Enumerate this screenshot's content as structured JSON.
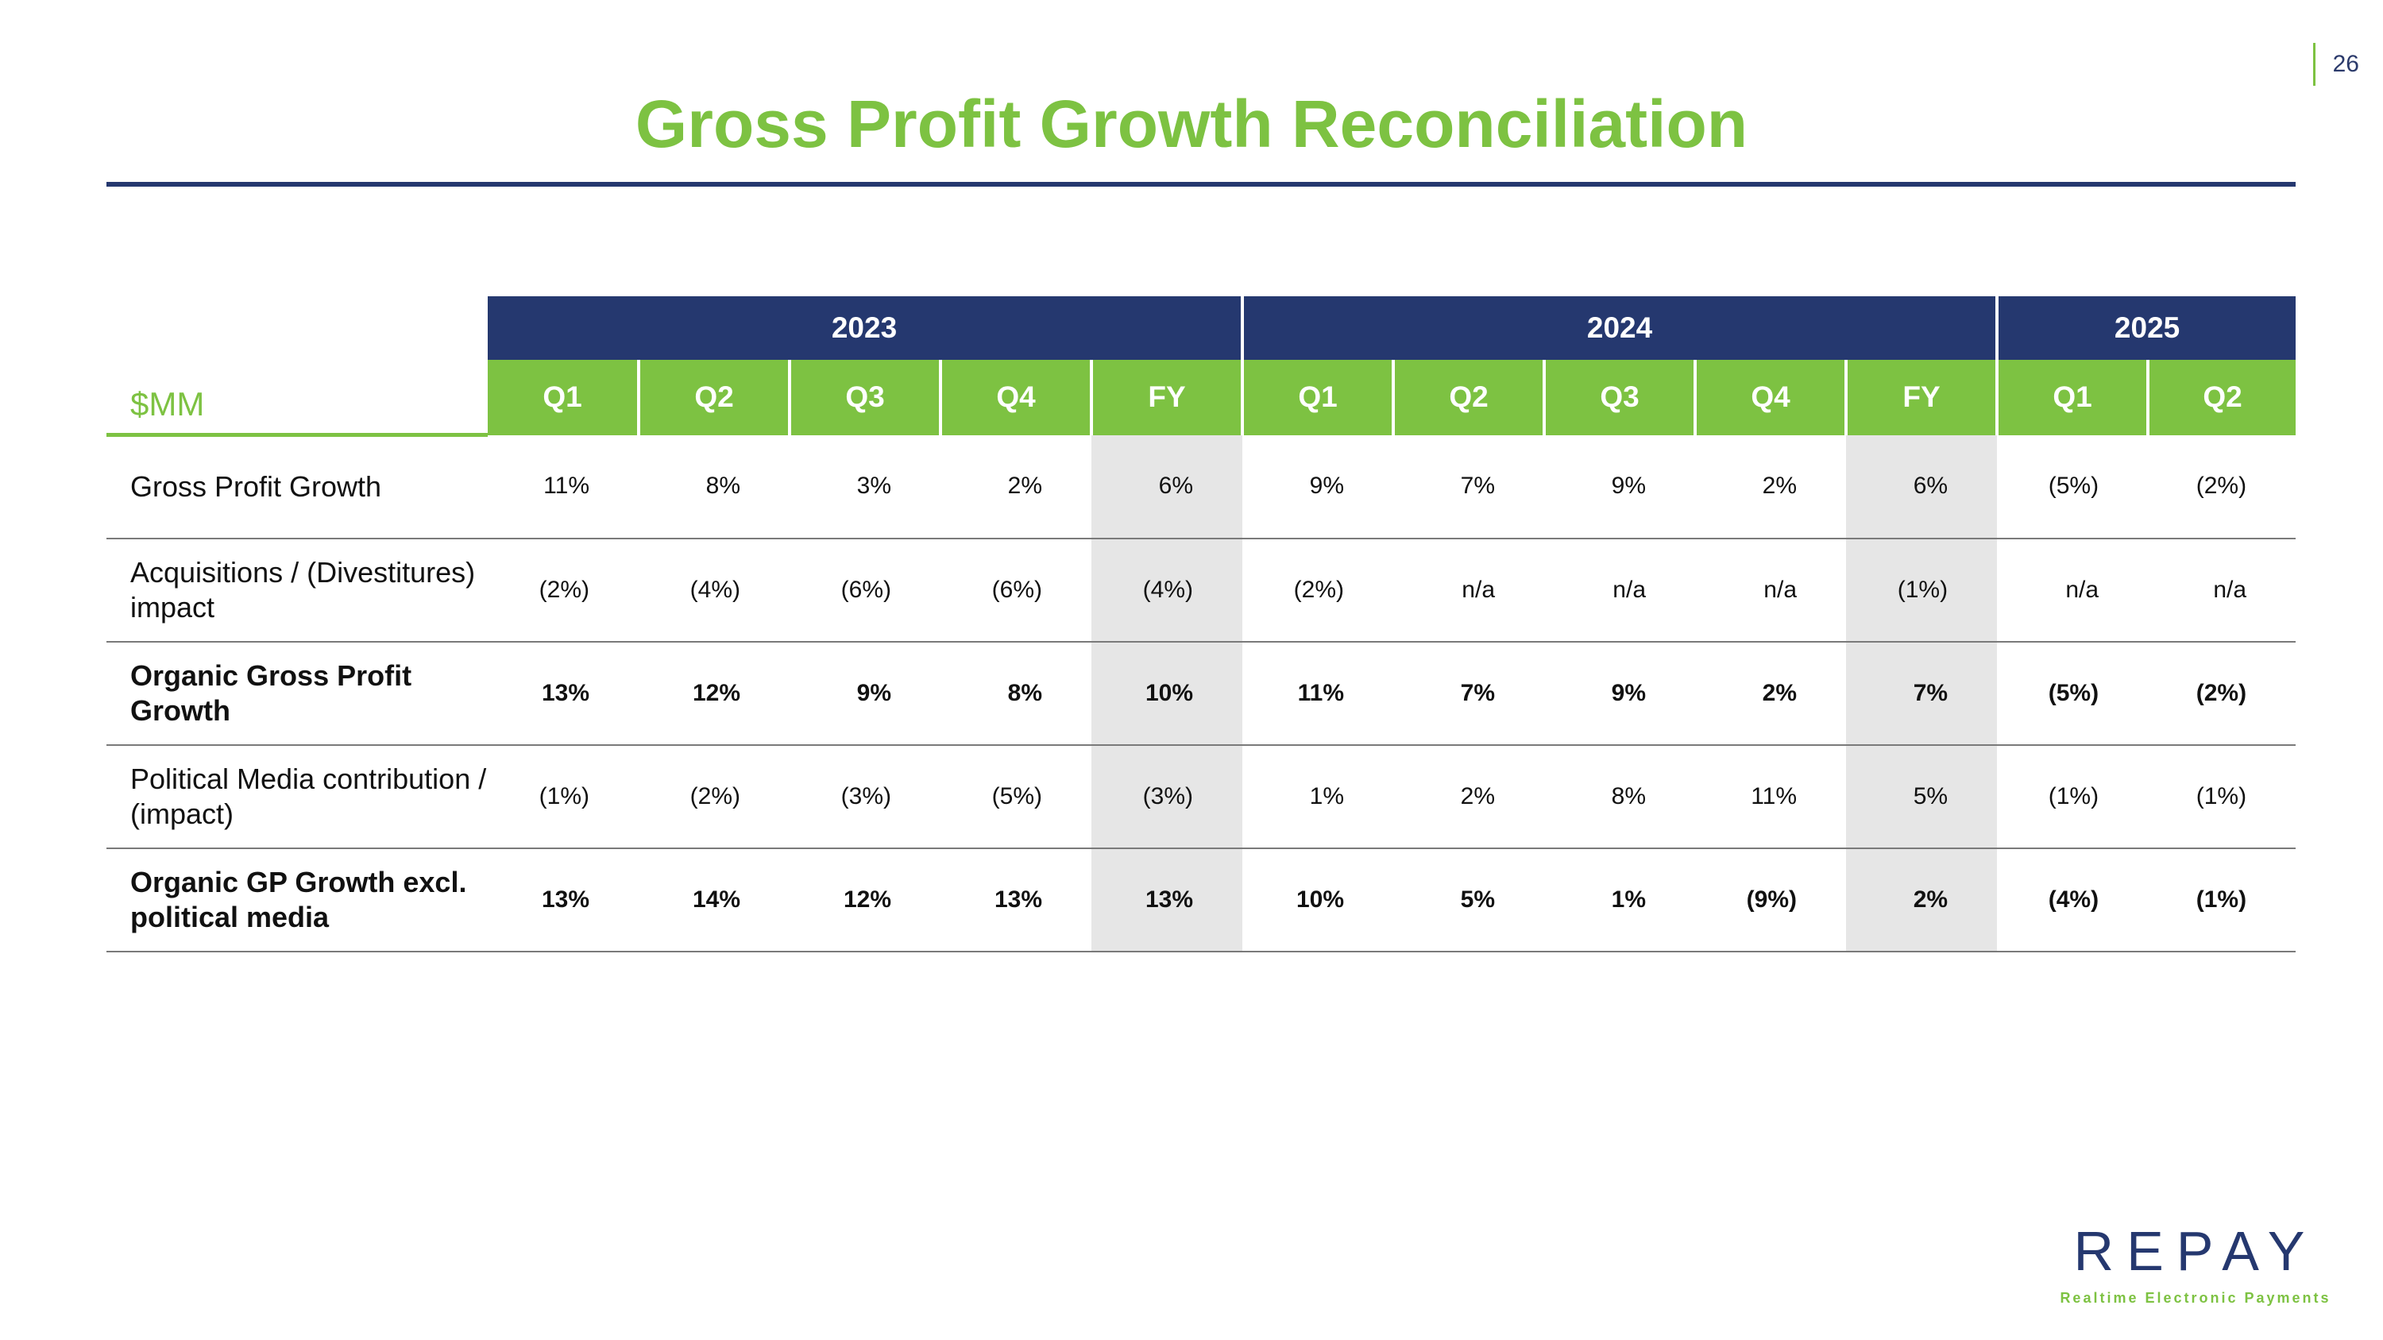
{
  "page_number": "26",
  "title": "Gross Profit Growth Reconciliation",
  "table": {
    "unit_label": "$MM",
    "years": [
      {
        "label": "2023",
        "span": 5
      },
      {
        "label": "2024",
        "span": 5
      },
      {
        "label": "2025",
        "span": 2
      }
    ],
    "periods": [
      "Q1",
      "Q2",
      "Q3",
      "Q4",
      "FY",
      "Q1",
      "Q2",
      "Q3",
      "Q4",
      "FY",
      "Q1",
      "Q2"
    ],
    "rows": [
      {
        "label": "Gross Profit Growth",
        "bold": false,
        "values": [
          "11%",
          "8%",
          "3%",
          "2%",
          "6%",
          "9%",
          "7%",
          "9%",
          "2%",
          "6%",
          "(5%)",
          "(2%)"
        ]
      },
      {
        "label": "Acquisitions / (Divestitures) impact",
        "bold": false,
        "values": [
          "(2%)",
          "(4%)",
          "(6%)",
          "(6%)",
          "(4%)",
          "(2%)",
          "n/a",
          "n/a",
          "n/a",
          "(1%)",
          "n/a",
          "n/a"
        ]
      },
      {
        "label": "Organic Gross Profit Growth",
        "bold": true,
        "values": [
          "13%",
          "12%",
          "9%",
          "8%",
          "10%",
          "11%",
          "7%",
          "9%",
          "2%",
          "7%",
          "(5%)",
          "(2%)"
        ]
      },
      {
        "label": "Political Media contribution / (impact)",
        "bold": false,
        "values": [
          "(1%)",
          "(2%)",
          "(3%)",
          "(5%)",
          "(3%)",
          "1%",
          "2%",
          "8%",
          "11%",
          "5%",
          "(1%)",
          "(1%)"
        ]
      },
      {
        "label": "Organic GP Growth excl. political media",
        "bold": true,
        "values": [
          "13%",
          "14%",
          "12%",
          "13%",
          "13%",
          "10%",
          "5%",
          "1%",
          "(9%)",
          "2%",
          "(4%)",
          "(1%)"
        ]
      }
    ]
  },
  "logo": {
    "wordmark": "REPAY",
    "tagline": "Realtime Electronic Payments"
  },
  "colors": {
    "accent_green": "#7dc242",
    "navy": "#25386f",
    "fy_shade": "#e6e6e6"
  }
}
